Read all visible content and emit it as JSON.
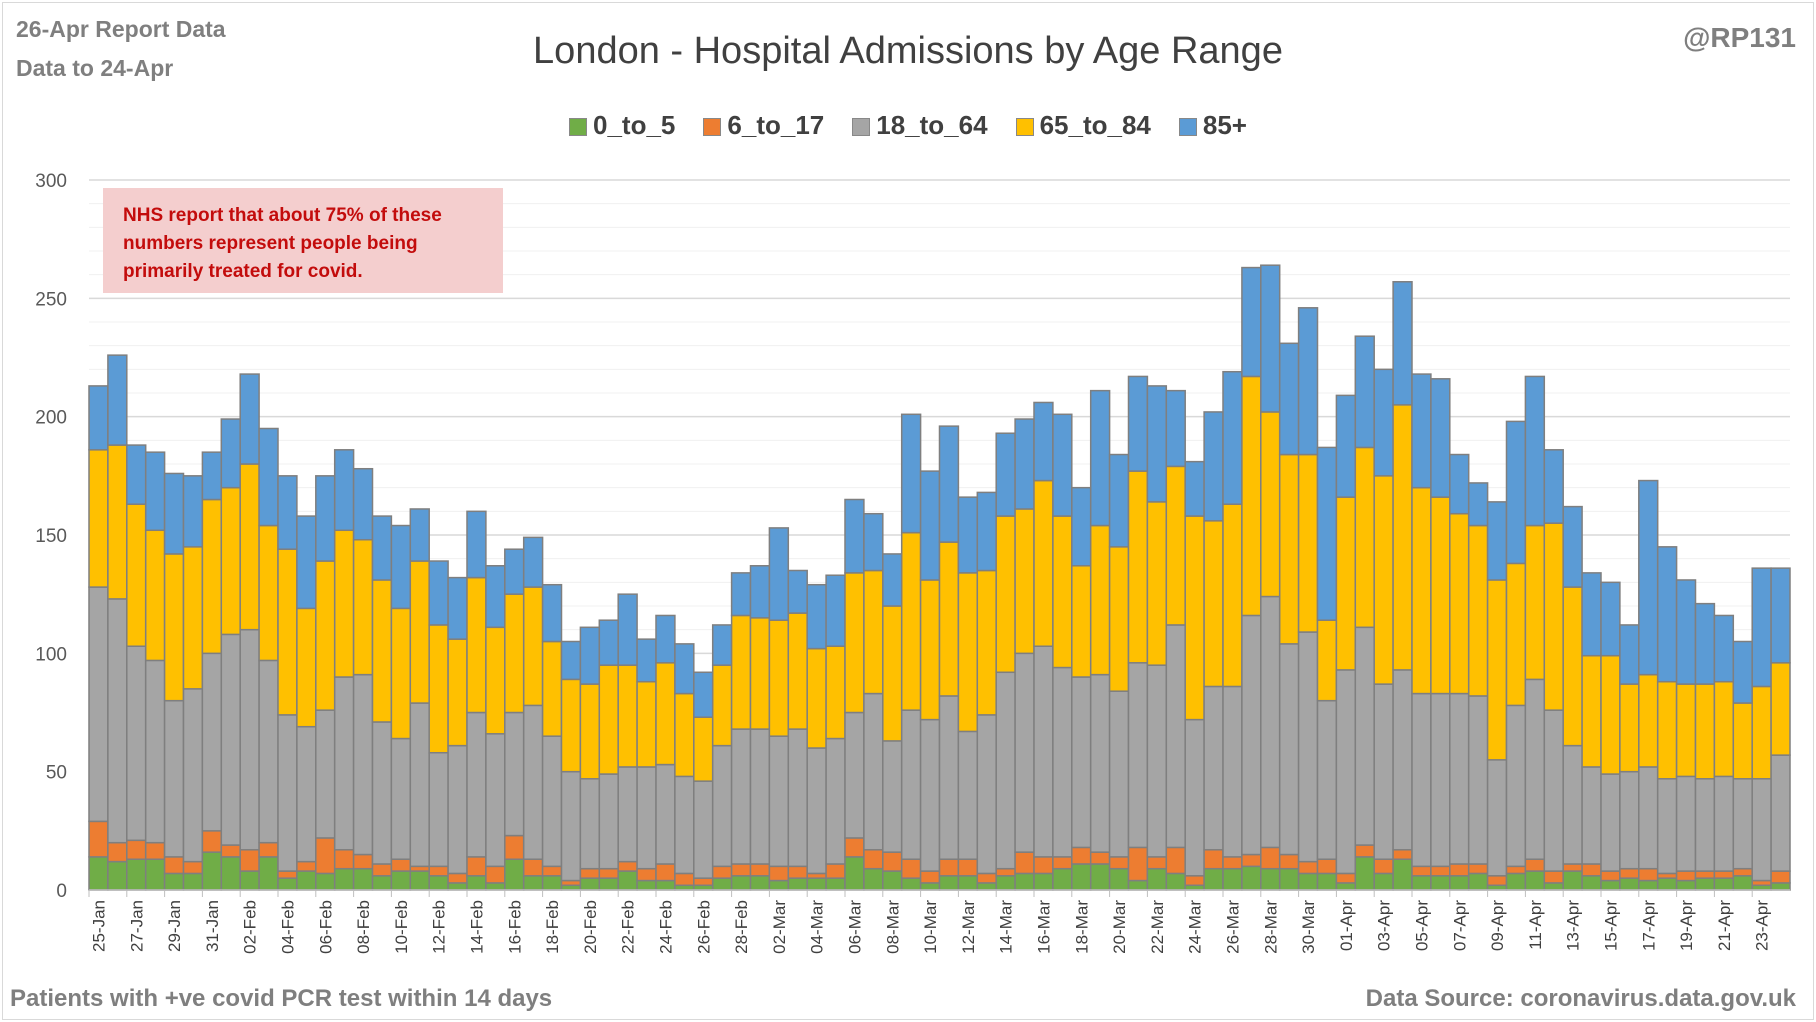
{
  "header": {
    "report": "26-Apr Report Data",
    "data_to": "Data to 24-Apr",
    "handle": "@RP131"
  },
  "footer": {
    "left": "Patients with  +ve covid PCR test within 14 days",
    "right": "Data Source: coronavirus.data.gov.uk"
  },
  "note": "NHS report that about 75% of these numbers represent people being primarily treated for covid.",
  "colors": {
    "0_to_5": "#70ad47",
    "6_to_17": "#ed7d31",
    "18_to_64": "#a5a5a5",
    "65_to_84": "#ffc000",
    "85+": "#5b9bd5"
  },
  "chart_data": {
    "type": "bar",
    "stacked": true,
    "title": "London - Hospital Admissions by Age Range",
    "xlabel": "",
    "ylabel": "",
    "ylim": [
      0,
      300
    ],
    "yticks": [
      0,
      50,
      100,
      150,
      200,
      250,
      300
    ],
    "grid": true,
    "legend": "top",
    "categories": [
      "25-Jan",
      "26-Jan",
      "27-Jan",
      "28-Jan",
      "29-Jan",
      "30-Jan",
      "31-Jan",
      "01-Feb",
      "02-Feb",
      "03-Feb",
      "04-Feb",
      "05-Feb",
      "06-Feb",
      "07-Feb",
      "08-Feb",
      "09-Feb",
      "10-Feb",
      "11-Feb",
      "12-Feb",
      "13-Feb",
      "14-Feb",
      "15-Feb",
      "16-Feb",
      "17-Feb",
      "18-Feb",
      "19-Feb",
      "20-Feb",
      "21-Feb",
      "22-Feb",
      "23-Feb",
      "24-Feb",
      "25-Feb",
      "26-Feb",
      "27-Feb",
      "28-Feb",
      "01-Mar",
      "02-Mar",
      "03-Mar",
      "04-Mar",
      "05-Mar",
      "06-Mar",
      "07-Mar",
      "08-Mar",
      "09-Mar",
      "10-Mar",
      "11-Mar",
      "12-Mar",
      "13-Mar",
      "14-Mar",
      "15-Mar",
      "16-Mar",
      "17-Mar",
      "18-Mar",
      "19-Mar",
      "20-Mar",
      "21-Mar",
      "22-Mar",
      "23-Mar",
      "24-Mar",
      "25-Mar",
      "26-Mar",
      "27-Mar",
      "28-Mar",
      "29-Mar",
      "30-Mar",
      "31-Mar",
      "01-Apr",
      "02-Apr",
      "03-Apr",
      "04-Apr",
      "05-Apr",
      "06-Apr",
      "07-Apr",
      "08-Apr",
      "09-Apr",
      "10-Apr",
      "11-Apr",
      "12-Apr",
      "13-Apr",
      "14-Apr",
      "15-Apr",
      "16-Apr",
      "17-Apr",
      "18-Apr",
      "19-Apr",
      "20-Apr",
      "21-Apr",
      "22-Apr",
      "23-Apr",
      "24-Apr"
    ],
    "tick_labels": [
      "25-Jan",
      "27-Jan",
      "29-Jan",
      "31-Jan",
      "02-Feb",
      "04-Feb",
      "06-Feb",
      "08-Feb",
      "10-Feb",
      "12-Feb",
      "14-Feb",
      "16-Feb",
      "18-Feb",
      "20-Feb",
      "22-Feb",
      "24-Feb",
      "26-Feb",
      "28-Feb",
      "02-Mar",
      "04-Mar",
      "06-Mar",
      "08-Mar",
      "10-Mar",
      "12-Mar",
      "14-Mar",
      "16-Mar",
      "18-Mar",
      "20-Mar",
      "22-Mar",
      "24-Mar",
      "26-Mar",
      "28-Mar",
      "30-Mar",
      "01-Apr",
      "03-Apr",
      "05-Apr",
      "07-Apr",
      "09-Apr",
      "11-Apr",
      "13-Apr",
      "15-Apr",
      "17-Apr",
      "19-Apr",
      "21-Apr",
      "23-Apr"
    ],
    "totals": [
      213,
      226,
      188,
      185,
      176,
      175,
      185,
      199,
      218,
      195,
      175,
      158,
      175,
      186,
      178,
      158,
      154,
      161,
      139,
      132,
      160,
      137,
      144,
      149,
      129,
      105,
      111,
      114,
      125,
      106,
      116,
      104,
      92,
      112,
      134,
      137,
      153,
      135,
      129,
      133,
      165,
      159,
      142,
      201,
      177,
      196,
      166,
      168,
      193,
      199,
      206,
      201,
      170,
      211,
      184,
      217,
      213,
      211,
      181,
      202,
      219,
      263,
      264,
      231,
      246,
      187,
      209,
      234,
      220,
      257,
      218,
      216,
      184,
      172,
      164,
      198,
      217,
      186,
      162,
      134,
      130,
      112,
      173,
      145,
      131,
      121,
      116,
      105,
      136,
      136
    ],
    "series": [
      {
        "name": "0_to_5",
        "values": [
          14,
          12,
          13,
          13,
          7,
          7,
          16,
          14,
          8,
          14,
          5,
          8,
          7,
          9,
          9,
          6,
          8,
          8,
          6,
          3,
          6,
          3,
          13,
          6,
          6,
          2,
          5,
          5,
          8,
          4,
          4,
          2,
          2,
          5,
          6,
          6,
          4,
          5,
          5,
          5,
          14,
          9,
          8,
          5,
          3,
          6,
          6,
          3,
          6,
          7,
          7,
          9,
          11,
          11,
          9,
          4,
          9,
          7,
          2,
          9,
          9,
          10,
          9,
          9,
          7,
          7,
          3,
          14,
          7,
          13,
          6,
          6,
          6,
          7,
          2,
          7,
          8,
          3,
          8,
          6,
          4,
          5,
          4,
          5,
          4,
          5,
          5,
          6,
          2,
          3
        ]
      },
      {
        "name": "6_to_17",
        "values": [
          15,
          8,
          8,
          7,
          7,
          5,
          9,
          5,
          9,
          6,
          3,
          4,
          15,
          8,
          6,
          5,
          5,
          2,
          4,
          4,
          8,
          7,
          10,
          7,
          4,
          2,
          4,
          4,
          4,
          5,
          7,
          5,
          3,
          5,
          5,
          5,
          6,
          5,
          2,
          6,
          8,
          8,
          8,
          8,
          5,
          7,
          7,
          4,
          3,
          9,
          7,
          5,
          7,
          5,
          5,
          14,
          5,
          11,
          4,
          8,
          5,
          5,
          9,
          6,
          5,
          6,
          4,
          5,
          6,
          4,
          4,
          4,
          5,
          4,
          4,
          3,
          5,
          5,
          3,
          5,
          4,
          4,
          5,
          2,
          4,
          3,
          3,
          3,
          2,
          5
        ]
      },
      {
        "name": "18_to_64",
        "values": [
          99,
          103,
          82,
          77,
          66,
          73,
          75,
          89,
          93,
          77,
          66,
          57,
          54,
          73,
          76,
          60,
          51,
          69,
          48,
          54,
          61,
          56,
          52,
          65,
          55,
          46,
          38,
          40,
          40,
          43,
          42,
          41,
          41,
          51,
          57,
          57,
          55,
          58,
          53,
          53,
          53,
          66,
          47,
          63,
          64,
          69,
          54,
          67,
          83,
          84,
          89,
          80,
          72,
          75,
          70,
          78,
          81,
          94,
          66,
          69,
          72,
          101,
          106,
          89,
          97,
          67,
          86,
          92,
          74,
          76,
          73,
          73,
          72,
          71,
          49,
          68,
          76,
          68,
          50,
          41,
          41,
          41,
          43,
          40,
          40,
          39,
          40,
          38,
          43,
          49
        ]
      },
      {
        "name": "65_to_84",
        "values": [
          58,
          65,
          60,
          55,
          62,
          60,
          65,
          62,
          70,
          57,
          70,
          50,
          63,
          62,
          57,
          60,
          55,
          60,
          54,
          45,
          57,
          45,
          50,
          50,
          40,
          39,
          40,
          46,
          43,
          36,
          43,
          35,
          27,
          34,
          48,
          47,
          49,
          49,
          42,
          39,
          59,
          52,
          57,
          75,
          59,
          65,
          67,
          61,
          66,
          61,
          70,
          64,
          47,
          63,
          61,
          81,
          69,
          67,
          86,
          70,
          77,
          101,
          78,
          80,
          75,
          34,
          73,
          76,
          88,
          112,
          87,
          83,
          76,
          72,
          76,
          60,
          65,
          79,
          67,
          47,
          50,
          37,
          39,
          41,
          39,
          40,
          40,
          32,
          39,
          39
        ]
      },
      {
        "name": "85+",
        "values": [
          27,
          38,
          25,
          33,
          34,
          30,
          20,
          29,
          38,
          41,
          31,
          39,
          36,
          34,
          30,
          27,
          35,
          22,
          27,
          26,
          28,
          26,
          19,
          21,
          24,
          16,
          24,
          19,
          30,
          18,
          20,
          21,
          19,
          17,
          18,
          22,
          39,
          18,
          27,
          30,
          31,
          24,
          22,
          50,
          46,
          49,
          32,
          33,
          35,
          38,
          33,
          43,
          33,
          57,
          39,
          40,
          49,
          32,
          23,
          46,
          56,
          46,
          62,
          47,
          62,
          73,
          43,
          47,
          45,
          52,
          48,
          50,
          25,
          18,
          33,
          60,
          63,
          31,
          34,
          35,
          31,
          25,
          82,
          57,
          44,
          34,
          28,
          26,
          50,
          40
        ]
      }
    ]
  }
}
